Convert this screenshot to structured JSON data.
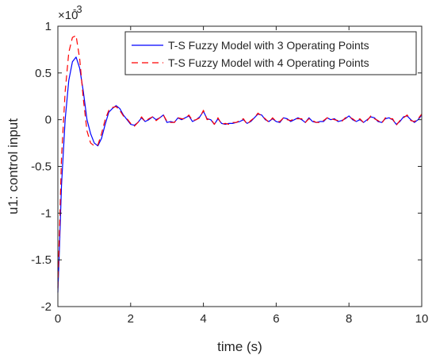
{
  "chart_data": {
    "type": "line",
    "xlabel": "time (s)",
    "ylabel": "u1: control input",
    "y_multiplier_label": "×10",
    "y_multiplier_exponent": "-3",
    "xlim": [
      0,
      10
    ],
    "ylim": [
      -2,
      1
    ],
    "y_scale_factor": 0.001,
    "xticks": [
      0,
      2,
      4,
      6,
      8,
      10
    ],
    "xtick_labels": [
      "0",
      "2",
      "4",
      "6",
      "8",
      "10"
    ],
    "yticks": [
      -2,
      -1.5,
      -1,
      -0.5,
      0,
      0.5,
      1
    ],
    "ytick_labels": [
      "-2",
      "-1.5",
      "-1",
      "-0.5",
      "0",
      "0.5",
      "1"
    ],
    "grid": false,
    "legend_position": "top-right",
    "series": [
      {
        "name": "T-S Fuzzy Model with 3 Operating Points",
        "color": "#0000ff",
        "dash": "solid",
        "x": [
          0,
          0.05,
          0.1,
          0.2,
          0.3,
          0.4,
          0.5,
          0.6,
          0.7,
          0.8,
          0.9,
          1.0,
          1.1,
          1.2,
          1.3,
          1.4,
          1.5,
          1.6,
          1.7,
          1.8,
          1.9,
          2.0,
          2.1,
          2.2,
          2.3,
          2.4,
          2.5,
          2.6,
          2.7,
          2.8,
          2.9,
          3.0,
          3.1,
          3.2,
          3.3,
          3.4,
          3.5,
          3.6,
          3.7,
          3.8,
          3.9,
          4.0,
          4.1,
          4.2,
          4.3,
          4.4,
          4.5,
          4.6,
          4.7,
          4.8,
          4.9,
          5.0,
          5.1,
          5.2,
          5.3,
          5.4,
          5.5,
          5.6,
          5.7,
          5.8,
          5.9,
          6.0,
          6.1,
          6.2,
          6.3,
          6.4,
          6.5,
          6.6,
          6.7,
          6.8,
          6.9,
          7.0,
          7.1,
          7.2,
          7.3,
          7.4,
          7.5,
          7.6,
          7.7,
          7.8,
          7.9,
          8.0,
          8.1,
          8.2,
          8.3,
          8.4,
          8.5,
          8.6,
          8.7,
          8.8,
          8.9,
          9.0,
          9.1,
          9.2,
          9.3,
          9.4,
          9.5,
          9.6,
          9.7,
          9.8,
          9.9,
          10.0
        ],
        "values": [
          -1.85,
          -1.3,
          -0.7,
          0.0,
          0.42,
          0.62,
          0.67,
          0.55,
          0.3,
          0.0,
          -0.15,
          -0.25,
          -0.28,
          -0.2,
          -0.05,
          0.08,
          0.12,
          0.15,
          0.12,
          0.05,
          0.0,
          -0.05,
          -0.06,
          -0.03,
          0.02,
          -0.02,
          0.0,
          0.03,
          0.0,
          0.02,
          0.05,
          -0.03,
          -0.02,
          -0.03,
          0.02,
          0.0,
          0.02,
          0.04,
          -0.02,
          0.0,
          0.03,
          0.09,
          0.01,
          0.0,
          -0.05,
          0.01,
          -0.04,
          -0.05,
          -0.04,
          -0.04,
          -0.03,
          -0.02,
          0.0,
          -0.04,
          -0.02,
          0.02,
          0.06,
          0.05,
          0.0,
          -0.02,
          0.01,
          -0.02,
          -0.03,
          0.02,
          0.01,
          -0.02,
          0.0,
          0.02,
          0.0,
          -0.03,
          0.02,
          -0.02,
          -0.03,
          -0.02,
          -0.02,
          0.02,
          0.0,
          0.01,
          -0.02,
          -0.01,
          0.01,
          0.04,
          0.0,
          -0.02,
          0.0,
          -0.03,
          0.0,
          0.03,
          0.02,
          -0.02,
          -0.03,
          0.01,
          0.02,
          0.0,
          -0.05,
          -0.02,
          0.03,
          0.04,
          0.0,
          -0.03,
          0.0,
          0.05
        ]
      },
      {
        "name": "T-S Fuzzy Model with 4 Operating Points",
        "color": "#ff0000",
        "dash": "dashed",
        "x": [
          0,
          0.05,
          0.1,
          0.2,
          0.3,
          0.4,
          0.5,
          0.6,
          0.7,
          0.8,
          0.9,
          1.0,
          1.1,
          1.2,
          1.3,
          1.4,
          1.5,
          1.6,
          1.7,
          1.8,
          1.9,
          2.0,
          2.1,
          2.2,
          2.3,
          2.4,
          2.5,
          2.6,
          2.7,
          2.8,
          2.9,
          3.0,
          3.1,
          3.2,
          3.3,
          3.4,
          3.5,
          3.6,
          3.7,
          3.8,
          3.9,
          4.0,
          4.1,
          4.2,
          4.3,
          4.4,
          4.5,
          4.6,
          4.7,
          4.8,
          4.9,
          5.0,
          5.1,
          5.2,
          5.3,
          5.4,
          5.5,
          5.6,
          5.7,
          5.8,
          5.9,
          6.0,
          6.1,
          6.2,
          6.3,
          6.4,
          6.5,
          6.6,
          6.7,
          6.8,
          6.9,
          7.0,
          7.1,
          7.2,
          7.3,
          7.4,
          7.5,
          7.6,
          7.7,
          7.8,
          7.9,
          8.0,
          8.1,
          8.2,
          8.3,
          8.4,
          8.5,
          8.6,
          8.7,
          8.8,
          8.9,
          9.0,
          9.1,
          9.2,
          9.3,
          9.4,
          9.5,
          9.6,
          9.7,
          9.8,
          9.9,
          10.0
        ],
        "values": [
          -1.8,
          -1.1,
          -0.4,
          0.3,
          0.72,
          0.88,
          0.9,
          0.65,
          0.22,
          -0.12,
          -0.25,
          -0.28,
          -0.27,
          -0.15,
          0.0,
          0.1,
          0.13,
          0.14,
          0.1,
          0.04,
          0.01,
          -0.04,
          -0.07,
          -0.03,
          0.03,
          -0.02,
          0.01,
          0.03,
          -0.01,
          0.02,
          0.05,
          -0.02,
          -0.03,
          -0.03,
          0.02,
          0.01,
          0.01,
          0.05,
          -0.01,
          0.0,
          0.02,
          0.1,
          0.0,
          0.01,
          -0.05,
          0.02,
          -0.05,
          -0.04,
          -0.05,
          -0.03,
          -0.03,
          -0.01,
          0.01,
          -0.05,
          -0.01,
          0.02,
          0.07,
          0.04,
          0.01,
          -0.03,
          0.02,
          -0.02,
          -0.02,
          0.02,
          0.0,
          -0.01,
          0.01,
          0.01,
          0.01,
          -0.03,
          0.01,
          -0.01,
          -0.03,
          -0.03,
          -0.01,
          0.02,
          0.01,
          0.0,
          -0.01,
          -0.02,
          0.02,
          0.03,
          0.01,
          -0.02,
          0.01,
          -0.03,
          -0.01,
          0.04,
          0.01,
          -0.01,
          -0.04,
          0.02,
          0.01,
          0.01,
          -0.06,
          -0.01,
          0.02,
          0.05,
          -0.01,
          -0.02,
          0.01,
          0.06
        ]
      }
    ]
  }
}
